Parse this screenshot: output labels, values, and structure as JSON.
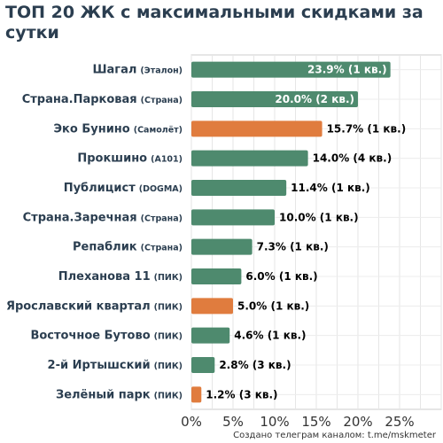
{
  "chart_data": {
    "type": "bar",
    "orientation": "horizontal",
    "title": "ТОП 20 ЖК с максимальными скидками за сутки",
    "categories": [
      {
        "name": "Шагал",
        "developer": "(Эталон)"
      },
      {
        "name": "Страна.Парковая",
        "developer": "(Страна)"
      },
      {
        "name": "Эко Бунино",
        "developer": "(Самолёт)"
      },
      {
        "name": "Прокшино",
        "developer": "(А101)"
      },
      {
        "name": "Публицист",
        "developer": "(DOGMA)"
      },
      {
        "name": "Страна.Заречная",
        "developer": "(Страна)"
      },
      {
        "name": "Репаблик",
        "developer": "(Страна)"
      },
      {
        "name": "Плеханова 11",
        "developer": "(ПИК)"
      },
      {
        "name": "Ярославский квартал",
        "developer": "(ПИК)"
      },
      {
        "name": "Восточное Бутово",
        "developer": "(ПИК)"
      },
      {
        "name": "2-й Иртышский",
        "developer": "(ПИК)"
      },
      {
        "name": "Зелёный парк",
        "developer": "(ПИК)"
      }
    ],
    "values": [
      23.9,
      20.0,
      15.7,
      14.0,
      11.4,
      10.0,
      7.3,
      6.0,
      5.0,
      4.6,
      2.8,
      1.2
    ],
    "data_labels": [
      "23.9% (1 кв.)",
      "20.0% (2 кв.)",
      "15.7% (1 кв.)",
      "14.0% (4 кв.)",
      "11.4% (1 кв.)",
      "10.0% (1 кв.)",
      "7.3% (1 кв.)",
      "6.0% (1 кв.)",
      "5.0% (1 кв.)",
      "4.6% (1 кв.)",
      "2.8% (3 кв.)",
      "1.2% (3 кв.)"
    ],
    "bar_colors": [
      "green",
      "green",
      "orange",
      "green",
      "green",
      "green",
      "green",
      "green",
      "orange",
      "green",
      "green",
      "orange"
    ],
    "colors": {
      "green": "#4e8a6e",
      "orange": "#e07c3e"
    },
    "xlim": [
      0,
      30
    ],
    "xticks": [
      0,
      5,
      10,
      15,
      20,
      25
    ],
    "xtick_labels": [
      "0%",
      "5%",
      "10%",
      "15%",
      "20%",
      "25%"
    ],
    "grid": true,
    "xlabel": "",
    "ylabel": ""
  },
  "credit": "Создано телеграм каналом: t.me/mskmeter"
}
